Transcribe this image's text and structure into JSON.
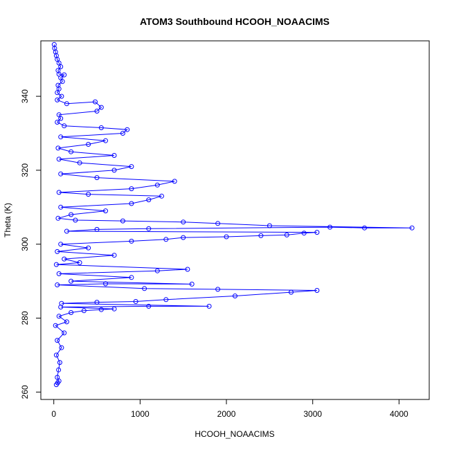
{
  "chart_data": {
    "type": "scatter",
    "title": "ATOM3 Southbound HCOOH_NOAACIMS",
    "xlabel": "HCOOH_NOAACIMS",
    "ylabel": "Theta (K)",
    "xlim": [
      -150,
      4350
    ],
    "ylim": [
      258,
      355
    ],
    "x_ticks": [
      0,
      1000,
      2000,
      3000,
      4000
    ],
    "y_ticks": [
      260,
      280,
      300,
      320,
      340
    ],
    "marker": "open-circle",
    "connect_points": true,
    "grid": false,
    "legend": "none",
    "series_color": "#0000FF",
    "series": [
      {
        "points": [
          [
            30,
            262
          ],
          [
            45,
            262.5
          ],
          [
            60,
            263
          ],
          [
            40,
            264
          ],
          [
            55,
            266
          ],
          [
            70,
            268
          ],
          [
            30,
            270
          ],
          [
            90,
            272
          ],
          [
            40,
            274
          ],
          [
            120,
            276
          ],
          [
            20,
            278
          ],
          [
            150,
            279
          ],
          [
            60,
            280.5
          ],
          [
            200,
            281.5
          ],
          [
            350,
            282
          ],
          [
            550,
            282.3
          ],
          [
            700,
            282.5
          ],
          [
            80,
            283
          ],
          [
            1100,
            283.2
          ],
          [
            1800,
            283.2
          ],
          [
            90,
            284
          ],
          [
            500,
            284.3
          ],
          [
            950,
            284.5
          ],
          [
            1300,
            285
          ],
          [
            2100,
            286
          ],
          [
            2750,
            287
          ],
          [
            3050,
            287.5
          ],
          [
            1900,
            287.8
          ],
          [
            1050,
            288
          ],
          [
            40,
            289
          ],
          [
            600,
            289.3
          ],
          [
            1600,
            289.2
          ],
          [
            200,
            290
          ],
          [
            900,
            291
          ],
          [
            60,
            292
          ],
          [
            1200,
            292.8
          ],
          [
            1550,
            293.2
          ],
          [
            30,
            294.5
          ],
          [
            300,
            295
          ],
          [
            120,
            296
          ],
          [
            700,
            297
          ],
          [
            40,
            298
          ],
          [
            400,
            299
          ],
          [
            80,
            300
          ],
          [
            900,
            300.8
          ],
          [
            1300,
            301.3
          ],
          [
            1500,
            301.8
          ],
          [
            2000,
            302
          ],
          [
            2400,
            302.3
          ],
          [
            2700,
            302.5
          ],
          [
            2900,
            303
          ],
          [
            3050,
            303.2
          ],
          [
            150,
            303.5
          ],
          [
            500,
            304
          ],
          [
            1100,
            304.2
          ],
          [
            3200,
            304.6
          ],
          [
            3600,
            304.4
          ],
          [
            4150,
            304.4
          ],
          [
            2500,
            305
          ],
          [
            1900,
            305.6
          ],
          [
            1500,
            306
          ],
          [
            800,
            306.3
          ],
          [
            250,
            306.5
          ],
          [
            50,
            307
          ],
          [
            200,
            308
          ],
          [
            600,
            309
          ],
          [
            80,
            310
          ],
          [
            900,
            311
          ],
          [
            1100,
            312
          ],
          [
            1250,
            313
          ],
          [
            400,
            313.5
          ],
          [
            60,
            314
          ],
          [
            900,
            315
          ],
          [
            1200,
            316
          ],
          [
            1400,
            317
          ],
          [
            500,
            318
          ],
          [
            80,
            319
          ],
          [
            700,
            320
          ],
          [
            900,
            321
          ],
          [
            300,
            322
          ],
          [
            60,
            323
          ],
          [
            700,
            324
          ],
          [
            200,
            325
          ],
          [
            50,
            326
          ],
          [
            400,
            327
          ],
          [
            600,
            328
          ],
          [
            80,
            329
          ],
          [
            800,
            330
          ],
          [
            850,
            331
          ],
          [
            550,
            331.5
          ],
          [
            120,
            332
          ],
          [
            40,
            333
          ],
          [
            80,
            334
          ],
          [
            60,
            335
          ],
          [
            500,
            336
          ],
          [
            550,
            337
          ],
          [
            480,
            338.5
          ],
          [
            150,
            338
          ],
          [
            40,
            339
          ],
          [
            90,
            340
          ],
          [
            40,
            341
          ],
          [
            60,
            342
          ],
          [
            50,
            343
          ],
          [
            100,
            344
          ],
          [
            80,
            345
          ],
          [
            120,
            345.8
          ],
          [
            60,
            346
          ],
          [
            50,
            347
          ],
          [
            80,
            348
          ],
          [
            60,
            349
          ],
          [
            40,
            350
          ],
          [
            30,
            351
          ],
          [
            20,
            352
          ],
          [
            10,
            353
          ],
          [
            5,
            354
          ]
        ]
      }
    ]
  }
}
